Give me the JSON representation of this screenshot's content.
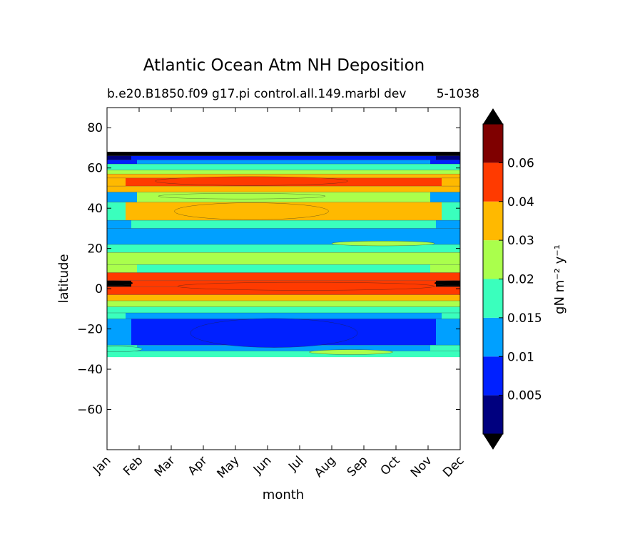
{
  "chart_data": {
    "type": "heatmap",
    "subtype": "filled-contour",
    "title": "Atlantic Ocean Atm NH Deposition",
    "subtitle": "b.e20.B1850.f09 g17.pi control.all.149.marbl dev",
    "subtitle_right": "5-1038",
    "xlabel": "month",
    "ylabel": "latitude",
    "x_categories": [
      "Jan",
      "Feb",
      "Mar",
      "Apr",
      "May",
      "Jun",
      "Jul",
      "Aug",
      "Sep",
      "Oct",
      "Nov",
      "Dec"
    ],
    "x_range": [
      1,
      12
    ],
    "y_range": [
      -80,
      90
    ],
    "y_ticks": [
      "80",
      "60",
      "40",
      "20",
      "0",
      "−20",
      "−40",
      "−60"
    ],
    "y_tick_values": [
      80,
      60,
      40,
      20,
      0,
      -20,
      -40,
      -60
    ],
    "data_lat_range": [
      -34,
      68
    ],
    "colorbar": {
      "label": "gN m⁻² y⁻¹",
      "tick_labels": [
        "0.005",
        "0.01",
        "0.015",
        "0.02",
        "0.03",
        "0.04",
        "0.06"
      ],
      "levels": [
        0.0025,
        0.005,
        0.01,
        0.015,
        0.02,
        0.03,
        0.04,
        0.06,
        0.07
      ],
      "colors": [
        "#00007f",
        "#0020ff",
        "#00a0ff",
        "#3affbd",
        "#aaff4c",
        "#ffb900",
        "#ff3a00",
        "#7f0000"
      ],
      "under_color": "#000000",
      "over_color": "#000000",
      "extend": "both"
    },
    "latitude_bands": [
      {
        "lat_min": 66,
        "lat_max": 68,
        "level": 8,
        "edge_level": 8
      },
      {
        "lat_min": 64,
        "lat_max": 66,
        "level": 1,
        "edge_level": 0
      },
      {
        "lat_min": 62,
        "lat_max": 64,
        "level": 2,
        "edge_level": 1
      },
      {
        "lat_min": 59,
        "lat_max": 62,
        "level": 3,
        "edge_level": 3
      },
      {
        "lat_min": 57,
        "lat_max": 59,
        "level": 4,
        "edge_level": 4
      },
      {
        "lat_min": 55,
        "lat_max": 57,
        "level": 5,
        "edge_level": 5
      },
      {
        "lat_min": 51,
        "lat_max": 55,
        "level": 6,
        "edge_level": 5
      },
      {
        "lat_min": 48,
        "lat_max": 51,
        "level": 5,
        "edge_level": 5
      },
      {
        "lat_min": 43,
        "lat_max": 48,
        "level": 4,
        "edge_level": 2
      },
      {
        "lat_min": 34,
        "lat_max": 43,
        "level": 5,
        "edge_level": 3
      },
      {
        "lat_min": 30,
        "lat_max": 34,
        "level": 3,
        "edge_level": 2
      },
      {
        "lat_min": 22,
        "lat_max": 30,
        "level": 2,
        "edge_level": 2
      },
      {
        "lat_min": 18,
        "lat_max": 22,
        "level": 3,
        "edge_level": 3
      },
      {
        "lat_min": 12,
        "lat_max": 18,
        "level": 4,
        "edge_level": 4
      },
      {
        "lat_min": 8,
        "lat_max": 12,
        "level": 3,
        "edge_level": 4
      },
      {
        "lat_min": 4,
        "lat_max": 8,
        "level": 6,
        "edge_level": 6
      },
      {
        "lat_min": 1,
        "lat_max": 4,
        "level": 6,
        "edge_level": 8
      },
      {
        "lat_min": -3,
        "lat_max": 1,
        "level": 6,
        "edge_level": 6
      },
      {
        "lat_min": -6,
        "lat_max": -3,
        "level": 5,
        "edge_level": 5
      },
      {
        "lat_min": -9,
        "lat_max": -6,
        "level": 4,
        "edge_level": 4
      },
      {
        "lat_min": -12,
        "lat_max": -9,
        "level": 3,
        "edge_level": 3
      },
      {
        "lat_min": -15,
        "lat_max": -12,
        "level": 2,
        "edge_level": 3
      },
      {
        "lat_min": -28,
        "lat_max": -15,
        "level": 1,
        "edge_level": 2
      },
      {
        "lat_min": -31,
        "lat_max": -28,
        "level": 2,
        "edge_level": 3
      },
      {
        "lat_min": -34,
        "lat_max": -31,
        "level": 3,
        "edge_level": 3
      }
    ]
  }
}
